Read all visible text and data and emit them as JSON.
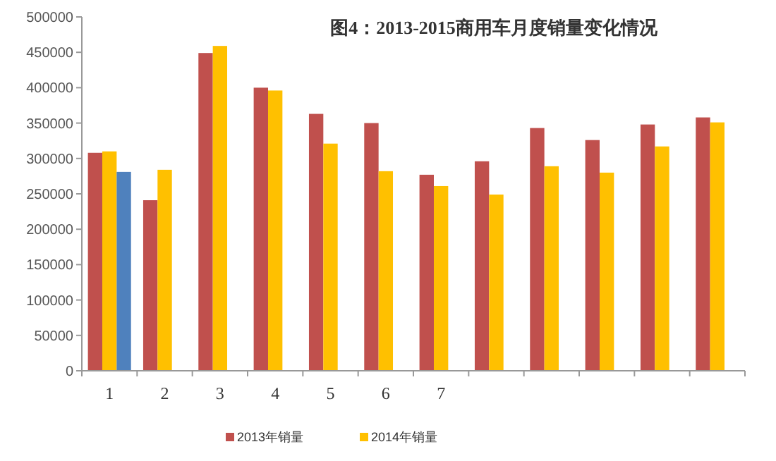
{
  "chart_data": {
    "type": "bar",
    "title": "图4：2013-2015商用车月度销量变化情况",
    "categories": [
      "1",
      "2",
      "3",
      "4",
      "5",
      "6",
      "7",
      null,
      null,
      null,
      null,
      null
    ],
    "series": [
      {
        "name": "2013年销量",
        "color": "#c0504d",
        "values": [
          308000,
          241000,
          449000,
          400000,
          363000,
          350000,
          277000,
          296000,
          343000,
          326000,
          348000,
          358000
        ]
      },
      {
        "name": "2014年销量",
        "color": "#ffc000",
        "values": [
          310000,
          284000,
          459000,
          396000,
          321000,
          282000,
          261000,
          249000,
          289000,
          280000,
          317000,
          351000
        ]
      },
      {
        "color": "#4f81bd",
        "values": [
          281000,
          null,
          null,
          null,
          null,
          null,
          null,
          null,
          null,
          null,
          null,
          null
        ]
      }
    ],
    "ylim": [
      0,
      500000
    ],
    "yticks": [
      0,
      50000,
      100000,
      150000,
      200000,
      250000,
      300000,
      350000,
      400000,
      450000,
      500000
    ],
    "grid": false,
    "legend": "bottom"
  }
}
